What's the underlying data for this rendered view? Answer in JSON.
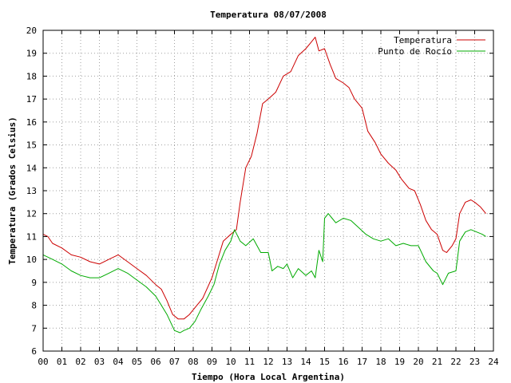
{
  "chart_data": {
    "type": "line",
    "title": "Temperatura 08/07/2008",
    "xlabel": "Tiempo (Hora Local Argentina)",
    "ylabel": "Temperatura (Grados Celsius)",
    "xlim": [
      0,
      24
    ],
    "ylim": [
      6,
      20
    ],
    "x_ticks": [
      "00",
      "01",
      "02",
      "03",
      "04",
      "05",
      "06",
      "07",
      "08",
      "09",
      "10",
      "11",
      "12",
      "13",
      "14",
      "15",
      "16",
      "17",
      "18",
      "19",
      "20",
      "21",
      "22",
      "23",
      "24"
    ],
    "y_ticks": [
      "6",
      "7",
      "8",
      "9",
      "10",
      "11",
      "12",
      "13",
      "14",
      "15",
      "16",
      "17",
      "18",
      "19",
      "20"
    ],
    "grid": true,
    "legend_position": "top-right",
    "series": [
      {
        "name": "Temperatura",
        "color": "#cc0000",
        "x": [
          0,
          0.25,
          0.5,
          1.0,
          1.5,
          2.0,
          2.5,
          3.0,
          3.5,
          4.0,
          4.5,
          5.0,
          5.5,
          6.0,
          6.3,
          6.6,
          6.9,
          7.2,
          7.5,
          7.8,
          8.1,
          8.5,
          9.0,
          9.3,
          9.6,
          10.0,
          10.3,
          10.5,
          10.8,
          11.1,
          11.4,
          11.7,
          12.0,
          12.4,
          12.8,
          13.2,
          13.6,
          14.0,
          14.3,
          14.5,
          14.7,
          15.0,
          15.3,
          15.6,
          16.0,
          16.3,
          16.6,
          17.0,
          17.3,
          17.7,
          18.0,
          18.4,
          18.8,
          19.1,
          19.5,
          19.8,
          20.1,
          20.4,
          20.7,
          21.0,
          21.3,
          21.5,
          21.8,
          22.0,
          22.2,
          22.5,
          22.8,
          23.0,
          23.3,
          23.6
        ],
        "y": [
          11.1,
          11.0,
          10.7,
          10.5,
          10.2,
          10.1,
          9.9,
          9.8,
          10.0,
          10.2,
          9.9,
          9.6,
          9.3,
          8.9,
          8.7,
          8.2,
          7.6,
          7.4,
          7.4,
          7.6,
          7.9,
          8.3,
          9.2,
          10.0,
          10.8,
          11.1,
          11.3,
          12.5,
          14.0,
          14.5,
          15.5,
          16.8,
          17.0,
          17.3,
          18.0,
          18.2,
          18.9,
          19.2,
          19.5,
          19.7,
          19.1,
          19.2,
          18.5,
          17.9,
          17.7,
          17.5,
          17.0,
          16.6,
          15.6,
          15.1,
          14.6,
          14.2,
          13.9,
          13.5,
          13.1,
          13.0,
          12.4,
          11.7,
          11.3,
          11.1,
          10.4,
          10.3,
          10.6,
          10.9,
          12.0,
          12.5,
          12.6,
          12.5,
          12.3,
          12.0
        ]
      },
      {
        "name": "Punto de Rocío",
        "color": "#00aa00",
        "x": [
          0,
          0.5,
          1.0,
          1.5,
          2.0,
          2.5,
          3.0,
          3.5,
          4.0,
          4.5,
          5.0,
          5.5,
          6.0,
          6.3,
          6.6,
          7.0,
          7.3,
          7.5,
          7.8,
          8.1,
          8.4,
          8.8,
          9.1,
          9.4,
          9.7,
          10.0,
          10.2,
          10.5,
          10.8,
          11.2,
          11.6,
          12.0,
          12.2,
          12.5,
          12.8,
          13.0,
          13.3,
          13.6,
          14.0,
          14.3,
          14.5,
          14.7,
          14.9,
          15.0,
          15.2,
          15.4,
          15.6,
          16.0,
          16.4,
          16.8,
          17.2,
          17.6,
          18.0,
          18.4,
          18.8,
          19.2,
          19.6,
          20.0,
          20.4,
          20.8,
          21.0,
          21.3,
          21.6,
          22.0,
          22.2,
          22.5,
          22.8,
          23.1,
          23.4,
          23.6
        ],
        "y": [
          10.2,
          10.0,
          9.8,
          9.5,
          9.3,
          9.2,
          9.2,
          9.4,
          9.6,
          9.4,
          9.1,
          8.8,
          8.4,
          8.0,
          7.6,
          6.9,
          6.8,
          6.9,
          7.0,
          7.3,
          7.8,
          8.4,
          8.9,
          9.8,
          10.4,
          10.8,
          11.3,
          10.8,
          10.6,
          10.9,
          10.3,
          10.3,
          9.5,
          9.7,
          9.6,
          9.8,
          9.2,
          9.6,
          9.3,
          9.5,
          9.2,
          10.4,
          9.9,
          11.8,
          12.0,
          11.8,
          11.6,
          11.8,
          11.7,
          11.4,
          11.1,
          10.9,
          10.8,
          10.9,
          10.6,
          10.7,
          10.6,
          10.6,
          9.9,
          9.5,
          9.4,
          8.9,
          9.4,
          9.5,
          10.8,
          11.2,
          11.3,
          11.2,
          11.1,
          11.0
        ]
      }
    ]
  }
}
